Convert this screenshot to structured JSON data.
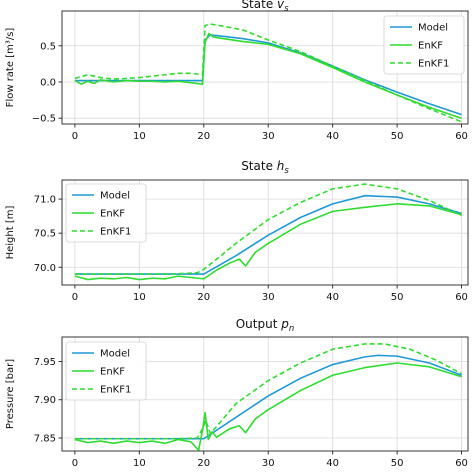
{
  "chart_data": [
    {
      "type": "line",
      "title": "State",
      "title_symbol": "v",
      "title_sub": "s",
      "ylabel": "Flow rate",
      "ylabel_unit": "[m³/s]",
      "xlim": [
        -2,
        61
      ],
      "ylim": [
        -0.58,
        0.98
      ],
      "xticks": [
        0,
        10,
        20,
        30,
        40,
        50,
        60
      ],
      "yticks": [
        -0.5,
        0.0,
        0.5
      ],
      "ytick_labels": [
        "−0.5",
        "0.0",
        "0.5"
      ],
      "grid": true,
      "legend_position": "top-right",
      "series": [
        {
          "name": "Model",
          "color": "#1f9ad6",
          "dash": "",
          "x": [
            0,
            5,
            10,
            15,
            19.8,
            20.2,
            21,
            23,
            26,
            30,
            35,
            40,
            45,
            50,
            55,
            60
          ],
          "y": [
            0.02,
            0.02,
            0.02,
            0.02,
            0.02,
            0.58,
            0.65,
            0.63,
            0.6,
            0.54,
            0.4,
            0.22,
            0.03,
            -0.14,
            -0.3,
            -0.45
          ]
        },
        {
          "name": "EnKF",
          "color": "#2fdc2f",
          "dash": "",
          "x": [
            0,
            1,
            2,
            3,
            4,
            6,
            8,
            10,
            12,
            14,
            16,
            18,
            19.8,
            20.2,
            20.8,
            21.5,
            23,
            26,
            30,
            35,
            40,
            45,
            50,
            55,
            60
          ],
          "y": [
            0.02,
            -0.03,
            0.01,
            -0.02,
            0.03,
            0.0,
            0.02,
            0.01,
            0.01,
            0.0,
            0.01,
            -0.01,
            -0.03,
            0.55,
            0.67,
            0.62,
            0.6,
            0.56,
            0.52,
            0.39,
            0.2,
            0.0,
            -0.18,
            -0.35,
            -0.5
          ]
        },
        {
          "name": "EnKF1",
          "color": "#2fdc2f",
          "dash": "5,3",
          "x": [
            0,
            2,
            4,
            6,
            8,
            10,
            12,
            14,
            16,
            18,
            19.8,
            20.2,
            21,
            23,
            26,
            30,
            35,
            40,
            45,
            50,
            55,
            60
          ],
          "y": [
            0.05,
            0.1,
            0.06,
            0.04,
            0.05,
            0.06,
            0.08,
            0.1,
            0.12,
            0.12,
            0.1,
            0.78,
            0.8,
            0.77,
            0.72,
            0.58,
            0.42,
            0.22,
            0.02,
            -0.18,
            -0.37,
            -0.55
          ]
        }
      ]
    },
    {
      "type": "line",
      "title": "State",
      "title_symbol": "h",
      "title_sub": "s",
      "ylabel": "Height",
      "ylabel_unit": "[m]",
      "xlim": [
        -2,
        61
      ],
      "ylim": [
        69.74,
        71.28
      ],
      "xticks": [
        0,
        10,
        20,
        30,
        40,
        50,
        60
      ],
      "yticks": [
        70.0,
        70.5,
        71.0
      ],
      "ytick_labels": [
        "70.0",
        "70.5",
        "71.0"
      ],
      "grid": true,
      "legend_position": "top-left",
      "series": [
        {
          "name": "Model",
          "color": "#1f9ad6",
          "dash": "",
          "x": [
            0,
            5,
            10,
            15,
            20,
            25,
            30,
            35,
            40,
            45,
            50,
            55,
            60
          ],
          "y": [
            69.9,
            69.9,
            69.9,
            69.9,
            69.9,
            70.17,
            70.47,
            70.73,
            70.93,
            71.05,
            71.03,
            70.93,
            70.79
          ]
        },
        {
          "name": "EnKF",
          "color": "#2fdc2f",
          "dash": "",
          "x": [
            0,
            2,
            4,
            6,
            8,
            10,
            12,
            14,
            16,
            18,
            20,
            22,
            24,
            25.5,
            26.5,
            28,
            30,
            35,
            40,
            45,
            50,
            55,
            60
          ],
          "y": [
            69.87,
            69.82,
            69.84,
            69.83,
            69.85,
            69.82,
            69.84,
            69.83,
            69.87,
            69.85,
            69.83,
            69.96,
            70.06,
            70.12,
            70.02,
            70.22,
            70.35,
            70.63,
            70.82,
            70.88,
            70.93,
            70.9,
            70.77
          ]
        },
        {
          "name": "EnKF1",
          "color": "#2fdc2f",
          "dash": "5,3",
          "x": [
            0,
            5,
            10,
            15,
            19,
            20,
            22,
            25,
            30,
            35,
            40,
            45,
            50,
            55,
            60
          ],
          "y": [
            69.9,
            69.9,
            69.9,
            69.9,
            69.92,
            69.97,
            70.12,
            70.35,
            70.7,
            70.95,
            71.15,
            71.22,
            71.15,
            70.98,
            70.76
          ]
        }
      ]
    },
    {
      "type": "line",
      "title": "Output",
      "title_symbol": "p",
      "title_sub": "n",
      "ylabel": "Pressure",
      "ylabel_unit": "[bar]",
      "xlim": [
        -2,
        61
      ],
      "ylim": [
        7.833,
        7.982
      ],
      "xticks": [
        0,
        10,
        20,
        30,
        40,
        50,
        60
      ],
      "yticks": [
        7.85,
        7.9,
        7.95
      ],
      "ytick_labels": [
        "7.85",
        "7.90",
        "7.95"
      ],
      "grid": true,
      "legend_position": "top-left",
      "series": [
        {
          "name": "Model",
          "color": "#1f9ad6",
          "dash": "",
          "x": [
            0,
            5,
            10,
            15,
            20,
            25,
            30,
            35,
            40,
            45,
            47,
            50,
            55,
            60
          ],
          "y": [
            7.849,
            7.849,
            7.849,
            7.849,
            7.849,
            7.877,
            7.905,
            7.928,
            7.946,
            7.956,
            7.958,
            7.957,
            7.948,
            7.932
          ]
        },
        {
          "name": "EnKF",
          "color": "#2fdc2f",
          "dash": "",
          "x": [
            0,
            2,
            4,
            6,
            8,
            10,
            12,
            14,
            16,
            18,
            19.2,
            19.8,
            20.2,
            20.7,
            21.3,
            22,
            24,
            25.5,
            26.5,
            28,
            30,
            35,
            40,
            45,
            50,
            55,
            60
          ],
          "y": [
            7.848,
            7.844,
            7.846,
            7.843,
            7.846,
            7.844,
            7.846,
            7.843,
            7.848,
            7.845,
            7.834,
            7.86,
            7.883,
            7.848,
            7.858,
            7.851,
            7.862,
            7.866,
            7.857,
            7.875,
            7.887,
            7.912,
            7.932,
            7.942,
            7.948,
            7.943,
            7.93
          ]
        },
        {
          "name": "EnKF1",
          "color": "#2fdc2f",
          "dash": "5,3",
          "x": [
            0,
            5,
            10,
            15,
            19,
            19.8,
            20.3,
            21,
            22,
            25,
            30,
            35,
            40,
            45,
            48,
            52,
            56,
            60
          ],
          "y": [
            7.849,
            7.849,
            7.849,
            7.849,
            7.85,
            7.862,
            7.873,
            7.856,
            7.865,
            7.895,
            7.925,
            7.948,
            7.966,
            7.973,
            7.973,
            7.966,
            7.952,
            7.934
          ]
        }
      ]
    }
  ]
}
